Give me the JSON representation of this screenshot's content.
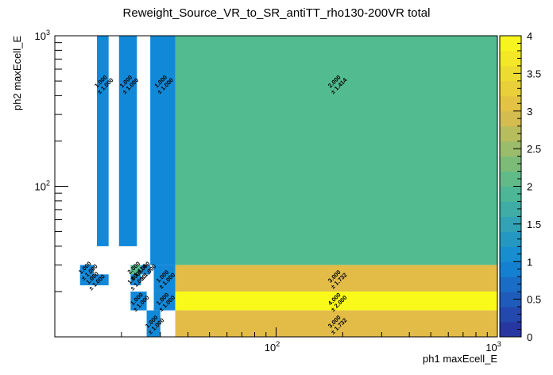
{
  "chart_data": {
    "type": "heatmap",
    "title": "Reweight_Source_VR_to_SR_antiTT_rho130-200VR total",
    "xlabel": "ph1 maxEcell_E",
    "ylabel": "ph2 maxEcell_E",
    "x_scale": "log",
    "y_scale": "log",
    "xlim": [
      10,
      1000
    ],
    "ylim": [
      10,
      1000
    ],
    "x_tick_labels": [
      {
        "base": "10",
        "exp": "2",
        "value": 100
      },
      {
        "base": "10",
        "exp": "3",
        "value": 1000
      }
    ],
    "y_tick_labels": [
      {
        "base": "10",
        "exp": "2",
        "value": 100
      },
      {
        "base": "10",
        "exp": "3",
        "value": 1000
      }
    ],
    "colorbar": {
      "min": 0,
      "max": 4,
      "ticks": [
        "0",
        "0.5",
        "1",
        "1.5",
        "2",
        "2.5",
        "3",
        "3.5",
        "4"
      ],
      "tick_values": [
        0,
        0.5,
        1,
        1.5,
        2,
        2.5,
        3,
        3.5,
        4
      ]
    },
    "cells": [
      {
        "x0": 15.5,
        "x1": 17.5,
        "y0": 40,
        "y1": 1000,
        "value": 1.0,
        "label": "1.000",
        "error": "± 1.000"
      },
      {
        "x0": 19.5,
        "x1": 23.5,
        "y0": 40,
        "y1": 1000,
        "value": 1.0,
        "label": "1.000",
        "error": "± 1.000"
      },
      {
        "x0": 27,
        "x1": 35,
        "y0": 30,
        "y1": 1000,
        "value": 1.0,
        "label": "1.000",
        "error": "± 1.000"
      },
      {
        "x0": 35,
        "x1": 1000,
        "y0": 30,
        "y1": 1000,
        "value": 2.0,
        "label": "2.000",
        "error": "± 1.414"
      },
      {
        "x0": 13,
        "x1": 17.5,
        "y0": 22,
        "y1": 26,
        "value": 1.0,
        "label": "1.000",
        "error": "± 1.000"
      },
      {
        "x0": 13,
        "x1": 15,
        "y0": 26,
        "y1": 30,
        "value": 1.0,
        "label": "1.000",
        "error": "± 1.000"
      },
      {
        "x0": 22,
        "x1": 24.5,
        "y0": 26,
        "y1": 30,
        "value": 2.0,
        "label": "2.000",
        "error": "± 1.414"
      },
      {
        "x0": 22,
        "x1": 24.5,
        "y0": 22,
        "y1": 26,
        "value": 1.0,
        "label": "1.000",
        "error": "± 1.000"
      },
      {
        "x0": 24.5,
        "x1": 27,
        "y0": 26,
        "y1": 30,
        "value": 1.0,
        "label": "1.000",
        "error": "± 1.000"
      },
      {
        "x0": 28,
        "x1": 35,
        "y0": 20,
        "y1": 30,
        "value": 1.0,
        "label": "1.000",
        "error": "± 1.000"
      },
      {
        "x0": 35,
        "x1": 1000,
        "y0": 20,
        "y1": 30,
        "value": 3.0,
        "label": "3.000",
        "error": "± 1.732"
      },
      {
        "x0": 22,
        "x1": 26,
        "y0": 15,
        "y1": 20,
        "value": 1.0,
        "label": "1.000",
        "error": "± 1.000"
      },
      {
        "x0": 28,
        "x1": 35,
        "y0": 15,
        "y1": 20,
        "value": 1.0,
        "label": "1.000",
        "error": "± 1.000"
      },
      {
        "x0": 35,
        "x1": 1000,
        "y0": 15,
        "y1": 20,
        "value": 4.0,
        "label": "4.000",
        "error": "± 2.000"
      },
      {
        "x0": 26,
        "x1": 30,
        "y0": 10,
        "y1": 15,
        "value": 1.0,
        "label": "1.000",
        "error": "± 1.000"
      },
      {
        "x0": 35,
        "x1": 1000,
        "y0": 10,
        "y1": 15,
        "value": 3.0,
        "label": "3.000",
        "error": "± 1.732"
      }
    ],
    "colors": {
      "v0": "#2a2d9c",
      "v1": "#1289d8",
      "v2": "#52bb8f",
      "v3": "#e2bc47",
      "v4": "#fafa1a",
      "frame": "#000000",
      "background": "#ffffff"
    }
  }
}
